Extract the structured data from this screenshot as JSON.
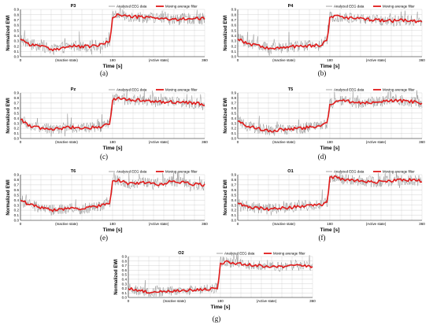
{
  "chart_data": [
    {
      "id": "P3",
      "type": "line",
      "title": "P3",
      "caption": "(a)",
      "xlabel": "Time [s]",
      "ylabel": "Normalized EWI",
      "xlim": [
        0,
        360
      ],
      "ylim": [
        0,
        0.9
      ],
      "xticks": [
        0,
        180,
        360
      ],
      "yticks": [
        "0.0",
        "0.1",
        "0.2",
        "0.3",
        "0.4",
        "0.5",
        "0.6",
        "0.7",
        "0.8",
        "0.9"
      ],
      "annotations": [
        "(Inactive state)",
        "(Active state)"
      ],
      "legend": [
        "Analyzed EEG data",
        "Moving average filter"
      ],
      "legend_position": "top-right",
      "grid": true,
      "series": [
        {
          "name": "Moving average filter",
          "x": [
            0,
            20,
            40,
            60,
            80,
            100,
            120,
            140,
            160,
            175,
            180,
            190,
            210,
            240,
            270,
            300,
            330,
            360
          ],
          "y": [
            0.35,
            0.22,
            0.22,
            0.12,
            0.17,
            0.2,
            0.19,
            0.2,
            0.23,
            0.3,
            0.76,
            0.8,
            0.77,
            0.75,
            0.74,
            0.7,
            0.73,
            0.72
          ]
        }
      ]
    },
    {
      "id": "P4",
      "type": "line",
      "title": "P4",
      "caption": "(b)",
      "xlabel": "Time [s]",
      "ylabel": "Normalized EWI",
      "xlim": [
        0,
        360
      ],
      "ylim": [
        0,
        0.9
      ],
      "xticks": [
        0,
        180,
        360
      ],
      "yticks": [
        "0.0",
        "0.1",
        "0.2",
        "0.3",
        "0.4",
        "0.5",
        "0.6",
        "0.7",
        "0.8",
        "0.9"
      ],
      "annotations": [
        "(Inactive state)",
        "(Active state)"
      ],
      "legend": [
        "Analyzed EEG data",
        "Moving average filter"
      ],
      "legend_position": "top-right",
      "grid": true,
      "series": [
        {
          "name": "Moving average filter",
          "x": [
            0,
            20,
            40,
            60,
            80,
            100,
            120,
            140,
            160,
            175,
            180,
            190,
            210,
            240,
            270,
            300,
            330,
            360
          ],
          "y": [
            0.35,
            0.24,
            0.22,
            0.15,
            0.16,
            0.19,
            0.2,
            0.21,
            0.22,
            0.3,
            0.76,
            0.78,
            0.74,
            0.72,
            0.7,
            0.68,
            0.7,
            0.65
          ]
        }
      ]
    },
    {
      "id": "Pz",
      "type": "line",
      "title": "Pz",
      "caption": "(c)",
      "xlabel": "Time [s]",
      "ylabel": "Normalized EWI",
      "xlim": [
        0,
        360
      ],
      "ylim": [
        0,
        0.9
      ],
      "xticks": [
        0,
        180,
        360
      ],
      "yticks": [
        "0.0",
        "0.1",
        "0.2",
        "0.3",
        "0.4",
        "0.5",
        "0.6",
        "0.7",
        "0.8",
        "0.9"
      ],
      "annotations": [
        "(Inactive state)",
        "(Active state)"
      ],
      "legend": [
        "Analyzed EEG data",
        "Moving average filter"
      ],
      "legend_position": "top-right",
      "grid": true,
      "series": [
        {
          "name": "Moving average filter",
          "x": [
            0,
            20,
            40,
            60,
            80,
            100,
            120,
            140,
            160,
            175,
            180,
            190,
            210,
            240,
            270,
            300,
            330,
            360
          ],
          "y": [
            0.38,
            0.24,
            0.2,
            0.18,
            0.2,
            0.22,
            0.21,
            0.22,
            0.24,
            0.3,
            0.76,
            0.8,
            0.77,
            0.75,
            0.72,
            0.72,
            0.7,
            0.68
          ]
        }
      ]
    },
    {
      "id": "T5",
      "type": "line",
      "title": "T5",
      "caption": "(d)",
      "xlabel": "Time [s]",
      "ylabel": "Normalized EWI",
      "xlim": [
        0,
        360
      ],
      "ylim": [
        0,
        0.9
      ],
      "xticks": [
        0,
        180,
        360
      ],
      "yticks": [
        "0.0",
        "0.1",
        "0.2",
        "0.3",
        "0.4",
        "0.5",
        "0.6",
        "0.7",
        "0.8",
        "0.9"
      ],
      "annotations": [
        "(Inactive state)",
        "(Active state)"
      ],
      "legend": [
        "Analyzed EEG data",
        "Moving average filter"
      ],
      "legend_position": "top-right",
      "grid": true,
      "series": [
        {
          "name": "Moving average filter",
          "x": [
            0,
            20,
            40,
            60,
            80,
            100,
            120,
            140,
            160,
            175,
            180,
            190,
            210,
            240,
            270,
            300,
            330,
            360
          ],
          "y": [
            0.35,
            0.24,
            0.2,
            0.15,
            0.17,
            0.18,
            0.2,
            0.22,
            0.25,
            0.3,
            0.68,
            0.72,
            0.74,
            0.7,
            0.72,
            0.75,
            0.74,
            0.7
          ]
        }
      ]
    },
    {
      "id": "T6",
      "type": "line",
      "title": "T6",
      "caption": "(e)",
      "xlabel": "Time [s]",
      "ylabel": "Normalized EWI",
      "xlim": [
        0,
        360
      ],
      "ylim": [
        0,
        0.9
      ],
      "xticks": [
        0,
        180,
        360
      ],
      "yticks": [
        "0.0",
        "0.1",
        "0.2",
        "0.3",
        "0.4",
        "0.5",
        "0.6",
        "0.7",
        "0.8",
        "0.9"
      ],
      "annotations": [
        "(Inactive state)",
        "(Active state)"
      ],
      "legend": [
        "Analyzed EEG data",
        "Moving average filter"
      ],
      "legend_position": "top-right",
      "grid": true,
      "series": [
        {
          "name": "Moving average filter",
          "x": [
            0,
            20,
            40,
            60,
            80,
            100,
            120,
            140,
            160,
            175,
            180,
            190,
            210,
            240,
            270,
            300,
            330,
            360
          ],
          "y": [
            0.4,
            0.3,
            0.25,
            0.2,
            0.22,
            0.25,
            0.22,
            0.26,
            0.3,
            0.35,
            0.78,
            0.8,
            0.72,
            0.75,
            0.7,
            0.78,
            0.72,
            0.7
          ]
        }
      ]
    },
    {
      "id": "O1",
      "type": "line",
      "title": "O1",
      "caption": "(f)",
      "xlabel": "Time [s]",
      "ylabel": "Normalized EWI",
      "xlim": [
        0,
        360
      ],
      "ylim": [
        0,
        0.9
      ],
      "xticks": [
        0,
        180,
        360
      ],
      "yticks": [
        "0.0",
        "0.1",
        "0.2",
        "0.3",
        "0.4",
        "0.5",
        "0.6",
        "0.7",
        "0.8",
        "0.9"
      ],
      "annotations": [
        "(Inactive state)",
        "(Active state)"
      ],
      "legend": [
        "Analyzed EEG data",
        "Moving average filter"
      ],
      "legend_position": "top-right",
      "grid": true,
      "series": [
        {
          "name": "Moving average filter",
          "x": [
            0,
            20,
            40,
            60,
            80,
            100,
            120,
            140,
            160,
            175,
            180,
            190,
            210,
            240,
            270,
            300,
            330,
            360
          ],
          "y": [
            0.35,
            0.26,
            0.25,
            0.22,
            0.24,
            0.25,
            0.28,
            0.28,
            0.3,
            0.35,
            0.85,
            0.85,
            0.8,
            0.78,
            0.76,
            0.78,
            0.8,
            0.78
          ]
        }
      ]
    },
    {
      "id": "O2",
      "type": "line",
      "title": "O2",
      "caption": "(g)",
      "xlabel": "Time [s]",
      "ylabel": "Normalized EWI",
      "xlim": [
        0,
        360
      ],
      "ylim": [
        0,
        0.9
      ],
      "xticks": [
        0,
        180,
        360
      ],
      "yticks": [
        "0.0",
        "0.1",
        "0.2",
        "0.3",
        "0.4",
        "0.5",
        "0.6",
        "0.7",
        "0.8",
        "0.9"
      ],
      "annotations": [
        "(Inactive state)",
        "(Active state)"
      ],
      "legend": [
        "Analyzed EEG data",
        "Moving average filter"
      ],
      "legend_position": "top-right",
      "grid": true,
      "series": [
        {
          "name": "Moving average filter",
          "x": [
            0,
            20,
            40,
            60,
            80,
            100,
            120,
            140,
            160,
            175,
            180,
            190,
            210,
            240,
            270,
            300,
            330,
            360
          ],
          "y": [
            0.2,
            0.15,
            0.12,
            0.12,
            0.14,
            0.15,
            0.16,
            0.17,
            0.18,
            0.22,
            0.75,
            0.78,
            0.75,
            0.72,
            0.68,
            0.67,
            0.7,
            0.68
          ]
        }
      ]
    }
  ],
  "colors": {
    "raw": "#8c8c8c",
    "avg": "#e01a1a",
    "grid": "#c8c8c8",
    "axis": "#000000"
  }
}
